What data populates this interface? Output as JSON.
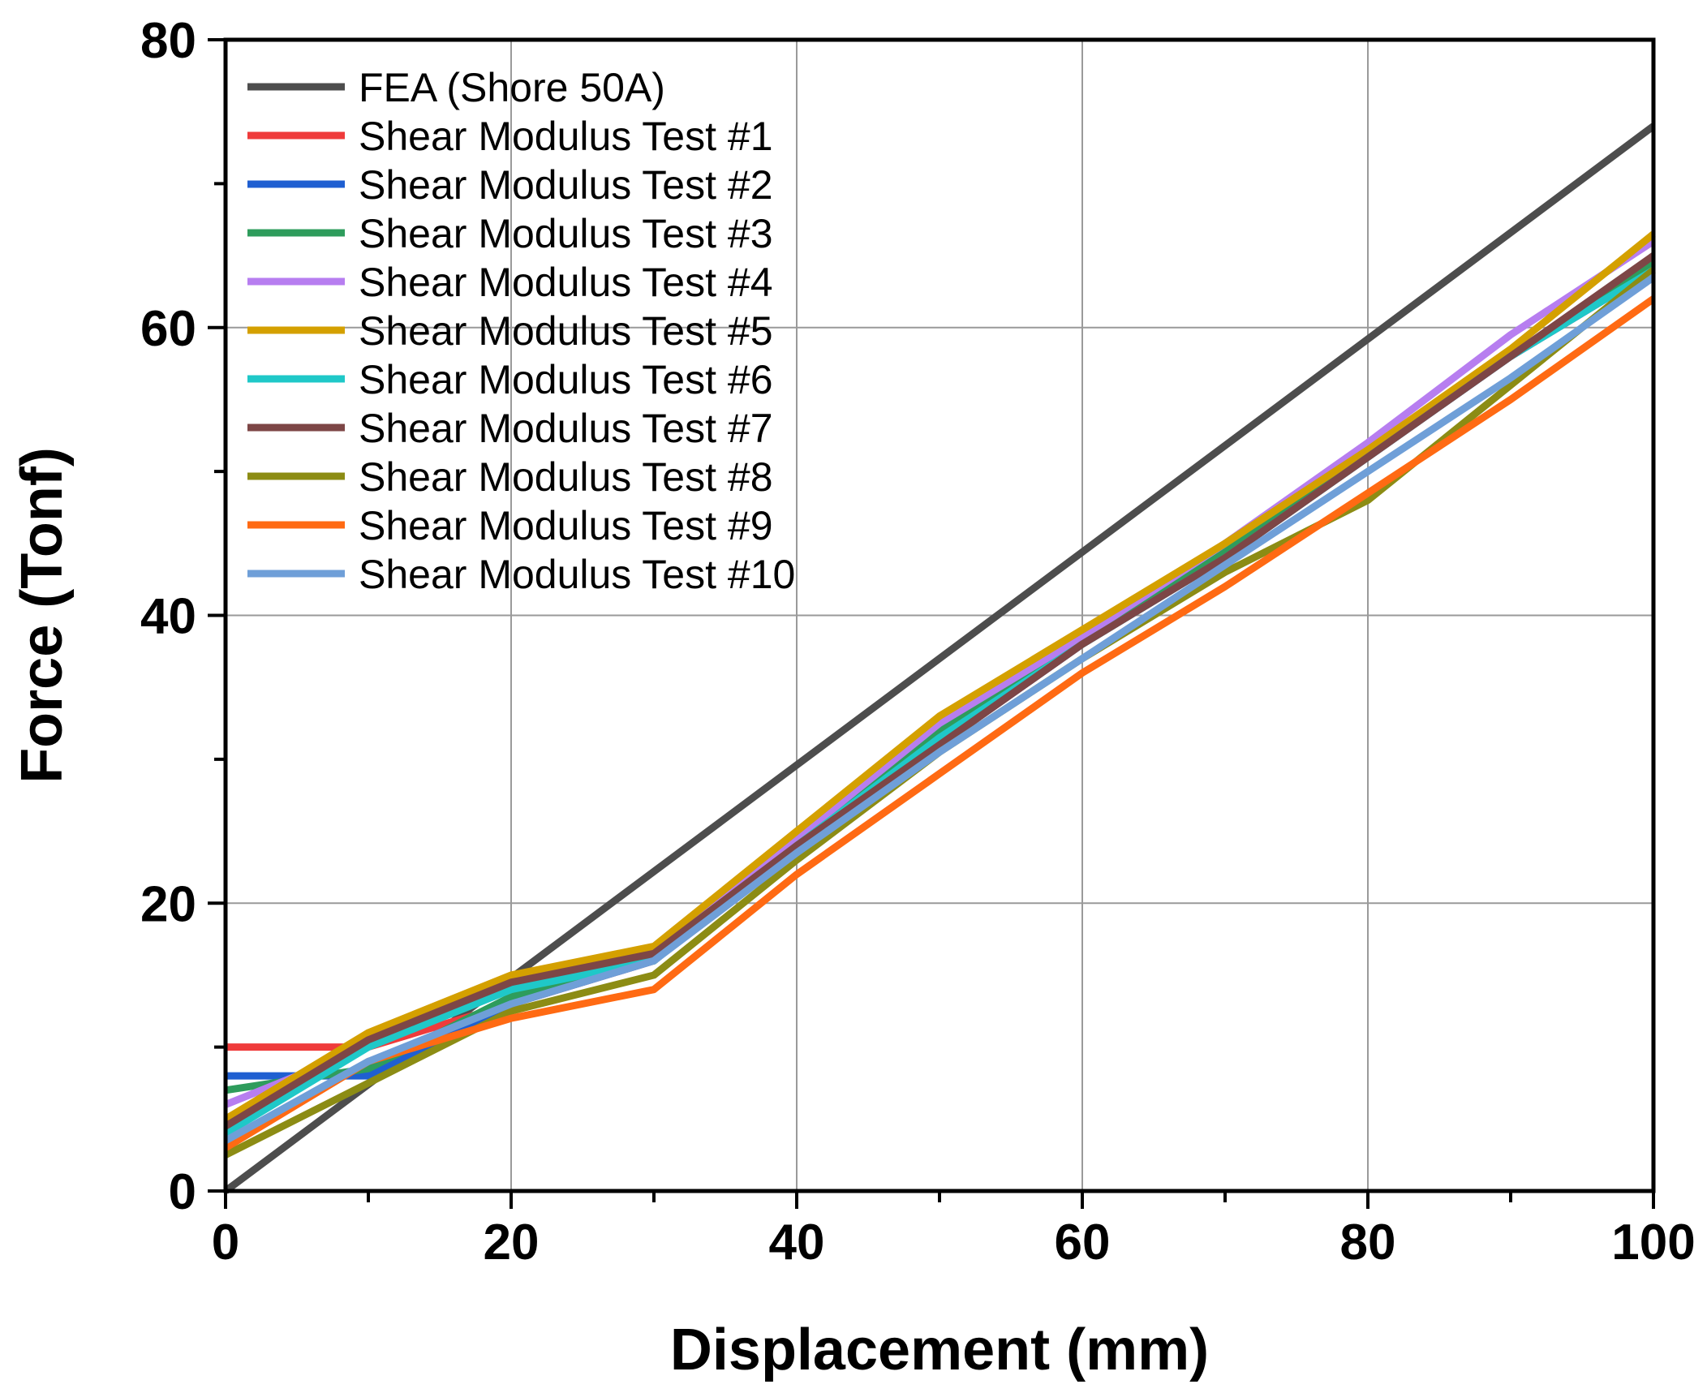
{
  "chart_data": {
    "type": "line",
    "title": "",
    "xlabel": "Displacement (mm)",
    "ylabel": "Force (Tonf)",
    "xlim": [
      0,
      100
    ],
    "ylim": [
      0,
      80
    ],
    "xticks": [
      0,
      20,
      40,
      60,
      80,
      100
    ],
    "yticks": [
      0,
      20,
      40,
      60,
      80
    ],
    "xtick_labels": [
      "0",
      "20",
      "40",
      "60",
      "80",
      "100"
    ],
    "ytick_labels": [
      "0",
      "20",
      "40",
      "60",
      "80"
    ],
    "grid": true,
    "legend_position": "top-left",
    "series": [
      {
        "name": "FEA (Shore 50A)",
        "color": "#4d4d4d",
        "x": [
          0,
          100
        ],
        "y": [
          0,
          74
        ]
      },
      {
        "name": "Shear Modulus Test #1",
        "color": "#ef3b3b",
        "x": [
          0,
          10,
          20,
          30,
          40,
          50,
          60,
          70,
          80,
          90,
          100
        ],
        "y": [
          10,
          10,
          13,
          16,
          24,
          31,
          38,
          44,
          51,
          58,
          64
        ]
      },
      {
        "name": "Shear Modulus Test #2",
        "color": "#1f5fd1",
        "x": [
          0,
          10,
          20,
          30,
          40,
          50,
          60,
          70,
          80,
          90,
          100
        ],
        "y": [
          8,
          8,
          13,
          16,
          24,
          31,
          38,
          44,
          51,
          58,
          64
        ]
      },
      {
        "name": "Shear Modulus Test #3",
        "color": "#2e9c5c",
        "x": [
          0,
          10,
          20,
          30,
          40,
          50,
          60,
          70,
          80,
          90,
          100
        ],
        "y": [
          7,
          8.5,
          13.5,
          16,
          24,
          32,
          38,
          44.5,
          51.5,
          58,
          64.5
        ]
      },
      {
        "name": "Shear Modulus Test #4",
        "color": "#b77ef0",
        "x": [
          0,
          10,
          20,
          30,
          40,
          50,
          60,
          70,
          80,
          90,
          100
        ],
        "y": [
          6,
          10,
          14.5,
          16.5,
          24.5,
          32.5,
          38.5,
          45,
          52,
          59.5,
          66
        ]
      },
      {
        "name": "Shear Modulus Test #5",
        "color": "#d4a000",
        "x": [
          0,
          10,
          20,
          30,
          40,
          50,
          60,
          70,
          80,
          90,
          100
        ],
        "y": [
          5,
          11,
          15,
          17,
          25,
          33,
          39,
          45,
          51.5,
          58.5,
          66.5
        ]
      },
      {
        "name": "Shear Modulus Test #6",
        "color": "#1fc8c8",
        "x": [
          0,
          10,
          20,
          30,
          40,
          50,
          60,
          70,
          80,
          90,
          100
        ],
        "y": [
          4,
          10,
          14,
          16,
          24,
          31.5,
          38,
          44,
          51,
          58,
          64
        ]
      },
      {
        "name": "Shear Modulus Test #7",
        "color": "#7d4646",
        "x": [
          0,
          10,
          20,
          30,
          40,
          50,
          60,
          70,
          80,
          90,
          100
        ],
        "y": [
          4.5,
          10.5,
          14.5,
          16.5,
          24,
          31,
          38,
          44,
          51,
          58,
          65
        ]
      },
      {
        "name": "Shear Modulus Test #8",
        "color": "#8c8c14",
        "x": [
          0,
          10,
          20,
          30,
          40,
          50,
          60,
          70,
          80,
          90,
          100
        ],
        "y": [
          2.5,
          7.5,
          12.5,
          15,
          23,
          30.5,
          37,
          43,
          48,
          56,
          64
        ]
      },
      {
        "name": "Shear Modulus Test #9",
        "color": "#ff6a13",
        "x": [
          0,
          10,
          20,
          30,
          40,
          50,
          60,
          70,
          80,
          90,
          100
        ],
        "y": [
          3,
          9,
          12,
          14,
          22,
          29,
          36,
          42,
          48.5,
          55,
          62
        ]
      },
      {
        "name": "Shear Modulus Test #10",
        "color": "#6f9fd8",
        "x": [
          0,
          10,
          20,
          30,
          40,
          50,
          60,
          70,
          80,
          90,
          100
        ],
        "y": [
          3.5,
          9,
          13,
          16,
          23.5,
          30.5,
          37,
          43.5,
          50,
          56.5,
          63.5
        ]
      }
    ]
  }
}
